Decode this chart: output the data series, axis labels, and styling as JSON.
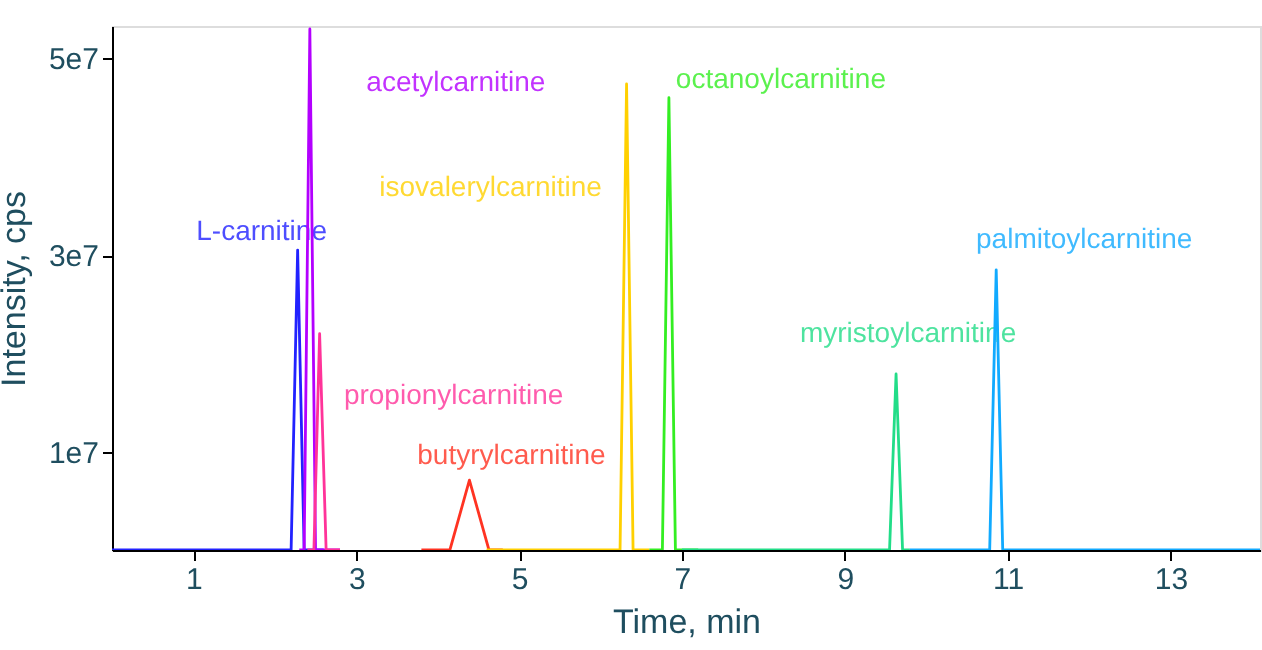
{
  "chart_data": {
    "type": "line",
    "xlabel": "Time, min",
    "ylabel": "Intensity, cps",
    "xlim": [
      0,
      14.1
    ],
    "ylim": [
      0,
      53300000
    ],
    "xticks": [
      1,
      3,
      5,
      7,
      9,
      11,
      13
    ],
    "yticks": [
      {
        "value": 10000000,
        "label": "1e7"
      },
      {
        "value": 30000000,
        "label": "3e7"
      },
      {
        "value": 50000000,
        "label": "5e7"
      }
    ],
    "marker": "none",
    "line_style": "solid",
    "series": [
      {
        "name": "L-carnitine",
        "color": "#2222ff",
        "x": [
          0,
          2.2,
          2.28,
          2.36,
          2.6
        ],
        "values": [
          0,
          0,
          30500000,
          0,
          0
        ]
      },
      {
        "name": "acetylcarnitine",
        "color": "#b300ff",
        "x": [
          2.3,
          2.36,
          2.43,
          2.5,
          2.8
        ],
        "values": [
          0,
          0,
          53000000,
          0,
          0
        ]
      },
      {
        "name": "propionylcarnitine",
        "color": "#ff3399",
        "x": [
          2.4,
          2.48,
          2.55,
          2.63,
          2.8
        ],
        "values": [
          0,
          0,
          22000000,
          0,
          0
        ]
      },
      {
        "name": "butyrylcarnitine",
        "color": "#ff3322",
        "x": [
          3.8,
          4.15,
          4.39,
          4.63,
          4.8
        ],
        "values": [
          0,
          0,
          7100000,
          0,
          0
        ]
      },
      {
        "name": "isovalerylcarnitine",
        "color": "#ffd000",
        "x": [
          4.6,
          6.24,
          6.32,
          6.4,
          6.6
        ],
        "values": [
          0,
          0,
          47400000,
          0,
          0
        ]
      },
      {
        "name": "octanoylcarnitine",
        "color": "#33ee22",
        "x": [
          6.6,
          6.76,
          6.84,
          6.92,
          7.2
        ],
        "values": [
          0,
          0,
          46000000,
          0,
          0
        ]
      },
      {
        "name": "myristoylcarnitine",
        "color": "#22dd88",
        "x": [
          7.0,
          9.55,
          9.63,
          9.71,
          9.8
        ],
        "values": [
          0,
          0,
          17900000,
          0,
          0
        ]
      },
      {
        "name": "palmitoylcarnitine",
        "color": "#11aaff",
        "x": [
          9.8,
          10.78,
          10.86,
          10.94,
          14.1
        ],
        "values": [
          0,
          0,
          28500000,
          0,
          0
        ]
      }
    ]
  }
}
